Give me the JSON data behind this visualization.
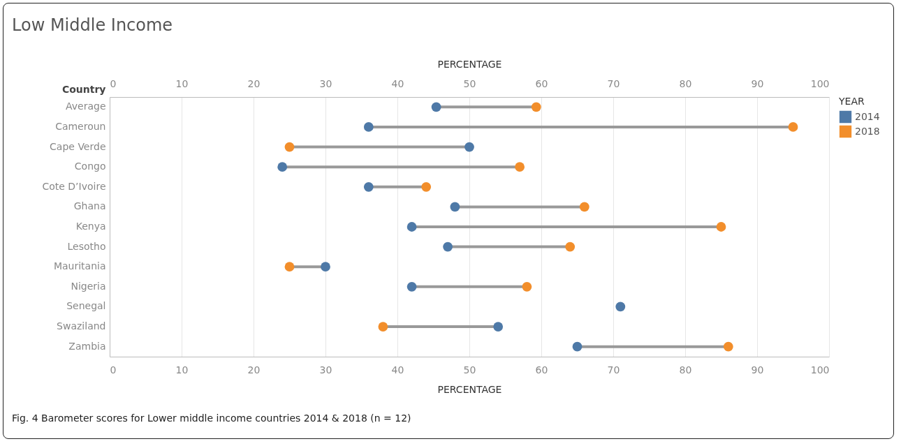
{
  "chart_data": {
    "type": "scatter",
    "orientation": "horizontal",
    "title": "Low Middle Income",
    "categories": [
      "Average",
      "Cameroun",
      "Cape Verde",
      "Congo",
      "Cote D’Ivoire",
      "Ghana",
      "Kenya",
      "Lesotho",
      "Mauritania",
      "Nigeria",
      "Senegal",
      "Swaziland",
      "Zambia"
    ],
    "series": [
      {
        "name": "2014",
        "color": "#4e79a7",
        "values": [
          45.4,
          36,
          50,
          24,
          36,
          48,
          42,
          47,
          30,
          42,
          71,
          54,
          65
        ]
      },
      {
        "name": "2018",
        "color": "#f28e2b",
        "values": [
          59.3,
          95,
          25,
          57,
          44,
          66,
          85,
          64,
          25,
          58,
          null,
          38,
          86
        ]
      }
    ],
    "xlabel": "PERCENTAGE",
    "x2label": "PERCENTAGE",
    "ylabel": "Country",
    "legend_title": "YEAR",
    "xlim": [
      0,
      100
    ],
    "xticks": [
      0,
      10,
      20,
      30,
      40,
      50,
      60,
      70,
      80,
      90,
      100
    ],
    "x2lim": [
      0,
      100
    ],
    "x2ticks": [
      0,
      10,
      20,
      30,
      40,
      50,
      60,
      70,
      80,
      90,
      100
    ],
    "grid": "x",
    "legend": "top right",
    "marker": "circle",
    "annotations": [
      "Fig. 4 Barometer scores for Lower middle income countries 2014 & 2018 (n = 12)"
    ]
  }
}
